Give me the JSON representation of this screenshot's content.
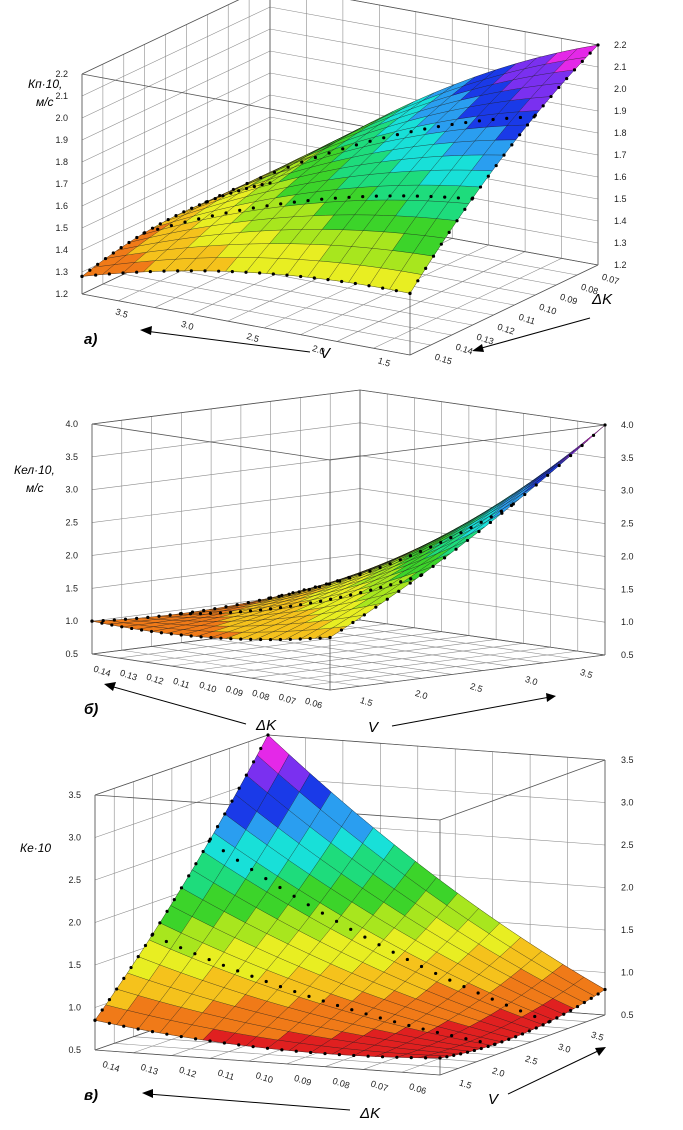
{
  "colors": {
    "bands": [
      "#e02020",
      "#f07a18",
      "#f5c21c",
      "#e8ee22",
      "#a8e61e",
      "#3cd42a",
      "#1edc7c",
      "#18e0d8",
      "#2a9ef0",
      "#1a3ae8",
      "#7a30f0",
      "#e428e8"
    ]
  },
  "chart_data": [
    {
      "panel": "a)",
      "type": "surface3d",
      "z_label_line1": "Кп·10,",
      "z_label_line2": "м/с",
      "x_label": "V",
      "y_label": "ΔK",
      "z_ticks": [
        "1.2",
        "1.3",
        "1.4",
        "1.5",
        "1.6",
        "1.7",
        "1.8",
        "1.9",
        "2.0",
        "2.1",
        "2.2"
      ],
      "z_ticks_right": [
        "1.2",
        "1.3",
        "1.4",
        "1.5",
        "1.6",
        "1.7",
        "1.8",
        "1.9",
        "2.0",
        "2.1",
        "2.2"
      ],
      "x_ticks": [
        "3.5",
        "3.0",
        "2.5",
        "2.0",
        "1.5"
      ],
      "y_ticks": [
        "0.15",
        "0.14",
        "0.13",
        "0.12",
        "0.11",
        "0.10",
        "0.09",
        "0.08",
        "0.07"
      ],
      "zlim": [
        1.2,
        2.2
      ],
      "corner_values": {
        "near_left": 1.28,
        "near_right": 1.48,
        "far_left": 1.3,
        "far_right": 2.2
      },
      "bulge": 0.16
    },
    {
      "panel": "б)",
      "type": "surface3d",
      "z_label_line1": "Кел·10,",
      "z_label_line2": "м/с",
      "x_label": "V",
      "y_label": "ΔK",
      "z_ticks": [
        "0.5",
        "1.0",
        "1.5",
        "2.0",
        "2.5",
        "3.0",
        "3.5",
        "4.0"
      ],
      "z_ticks_right": [
        "0.5",
        "1.0",
        "1.5",
        "2.0",
        "2.5",
        "3.0",
        "3.5",
        "4.0"
      ],
      "x_ticks": [
        "1.5",
        "2.0",
        "2.5",
        "3.0",
        "3.5"
      ],
      "y_ticks": [
        "0.14",
        "0.13",
        "0.12",
        "0.11",
        "0.10",
        "0.09",
        "0.08",
        "0.07",
        "0.06"
      ],
      "zlim": [
        0.5,
        4.0
      ],
      "corner_values": {
        "near_left": 1.0,
        "near_right": 1.3,
        "far_left": 1.2,
        "far_right": 4.0
      },
      "bulge": -0.35
    },
    {
      "panel": "в)",
      "type": "surface3d",
      "z_label_line1": "Ке·10",
      "z_label_line2": "",
      "x_label": "V",
      "y_label": "ΔK",
      "z_ticks": [
        "0.5",
        "1.0",
        "1.5",
        "2.0",
        "2.5",
        "3.0",
        "3.5"
      ],
      "z_ticks_right": [
        "0.5",
        "1.0",
        "1.5",
        "2.0",
        "2.5",
        "3.0",
        "3.5"
      ],
      "x_ticks": [
        "1.5",
        "2.0",
        "2.5",
        "3.0",
        "3.5"
      ],
      "y_ticks": [
        "0.14",
        "0.13",
        "0.12",
        "0.11",
        "0.10",
        "0.09",
        "0.08",
        "0.07",
        "0.06"
      ],
      "zlim": [
        0.5,
        3.5
      ],
      "corner_values": {
        "near_left": 0.85,
        "near_right": 0.7,
        "far_left": 3.5,
        "far_right": 0.8
      },
      "bulge": -0.3
    }
  ]
}
